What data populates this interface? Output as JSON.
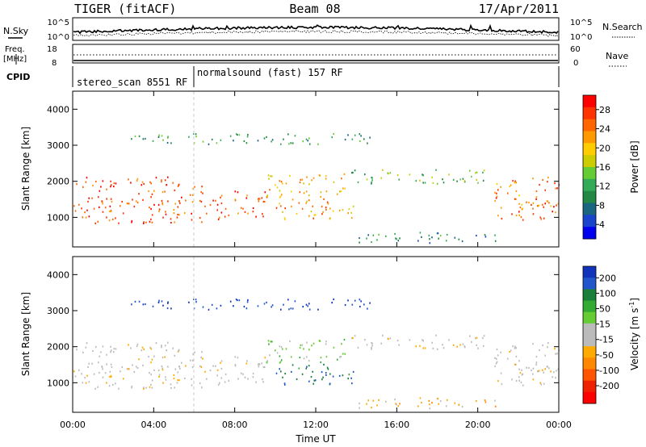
{
  "header": {
    "station": "TIGER (fitACF)",
    "beam": "Beam 08",
    "date": "17/Apr/2011"
  },
  "top_panels": {
    "nsky_label": "N.Sky",
    "nsearch_label": "N.Search",
    "noise_ticks_left": [
      "10^5",
      "10^0"
    ],
    "noise_ticks_right": [
      "10^5",
      "10^0"
    ],
    "freq_label": "Freq.",
    "freq_unit": "[MHz]",
    "freq_ticks": [
      "18",
      "8"
    ],
    "nave_label": "Nave",
    "nave_ticks": [
      "60",
      "0"
    ],
    "cpid_label": "CPID",
    "cpid_segments": [
      {
        "name": "stereo_scan 8551 RF",
        "start_hour": 0,
        "end_hour": 6
      },
      {
        "name": "normalsound (fast) 157 RF",
        "start_hour": 6,
        "end_hour": 24
      }
    ]
  },
  "axes": {
    "xlabel": "Time UT",
    "x_ticks": [
      "00:00",
      "04:00",
      "08:00",
      "12:00",
      "16:00",
      "20:00",
      "00:00"
    ],
    "ylabel": "Slant Range [km]",
    "y_ticks": [
      "1000",
      "2000",
      "3000",
      "4000"
    ]
  },
  "power_colorbar": {
    "label": "Power [dB]",
    "ticks": [
      "28",
      "24",
      "20",
      "16",
      "12",
      "8",
      "4"
    ],
    "colors": [
      "#ff0000",
      "#ff3300",
      "#ff6600",
      "#ff9900",
      "#ffcc00",
      "#cccc00",
      "#66cc33",
      "#33aa55",
      "#228844",
      "#1a6680",
      "#1a44cc",
      "#0000ee"
    ]
  },
  "velocity_colorbar": {
    "label": "Velocity [m s",
    "label_sup": "-1",
    "label_end": "]",
    "ticks": [
      "200",
      "100",
      "50",
      "15",
      "-15",
      "-50",
      "-100",
      "-200"
    ],
    "colors": [
      "#1133bb",
      "#2255cc",
      "#1a7f3a",
      "#33aa33",
      "#66cc33",
      "#bbbbbb",
      "#bbbbbb",
      "#ffaa00",
      "#ff8800",
      "#ff5500",
      "#ee2200",
      "#ff0000"
    ]
  },
  "chart_data": {
    "type": "heatmap",
    "x_range_hours": [
      0,
      24
    ],
    "y_range_km": [
      180,
      4500
    ],
    "panels": [
      "Power [dB]",
      "Velocity [m s-1]"
    ],
    "scatter_regions": [
      {
        "t0": 0.0,
        "t1": 6.5,
        "r0": 800,
        "r1": 2100,
        "power_db": 26,
        "velocity": -20
      },
      {
        "t0": 6.5,
        "t1": 9.5,
        "r0": 900,
        "r1": 1700,
        "power_db": 25,
        "velocity": -10
      },
      {
        "t0": 9.5,
        "t1": 13.5,
        "r0": 1500,
        "r1": 2200,
        "power_db": 20,
        "velocity": 60
      },
      {
        "t0": 10.0,
        "t1": 14.0,
        "r0": 900,
        "r1": 1500,
        "power_db": 22,
        "velocity": 150
      },
      {
        "t0": 13.5,
        "t1": 20.5,
        "r0": 1900,
        "r1": 2300,
        "power_db": 12,
        "velocity": -20
      },
      {
        "t0": 20.5,
        "t1": 24.0,
        "r0": 900,
        "r1": 2100,
        "power_db": 24,
        "velocity": -10
      },
      {
        "t0": 2.5,
        "t1": 15.0,
        "r0": 3000,
        "r1": 3300,
        "power_db": 10,
        "velocity": 200
      },
      {
        "t0": 14.0,
        "t1": 21.0,
        "r0": 250,
        "r1": 550,
        "power_db": 8,
        "velocity": -60
      }
    ]
  }
}
